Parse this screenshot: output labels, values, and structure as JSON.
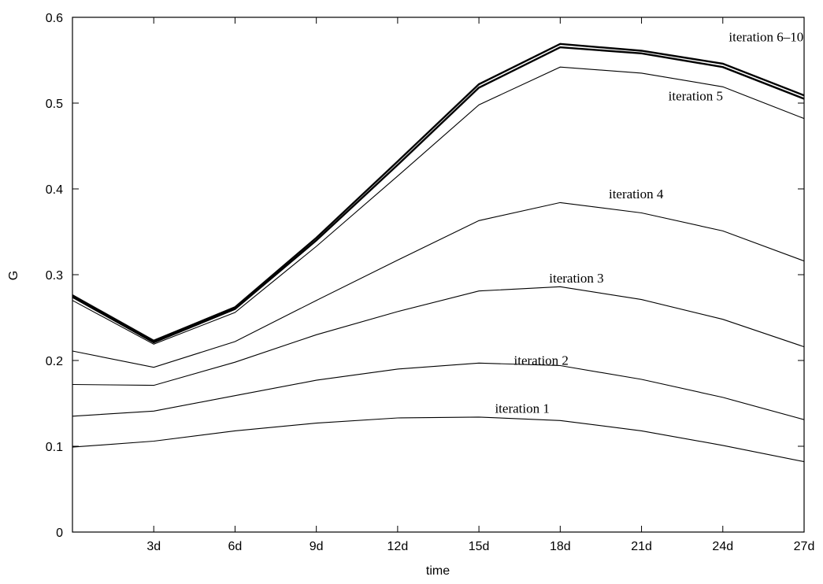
{
  "chart_data": {
    "type": "line",
    "xlabel": "time",
    "ylabel": "G",
    "xlim": [
      0,
      27
    ],
    "ylim": [
      0,
      0.6
    ],
    "x": [
      0,
      3,
      6,
      9,
      12,
      15,
      18,
      21,
      24,
      27
    ],
    "x_tick_values": [
      3,
      6,
      9,
      12,
      15,
      18,
      21,
      24,
      27
    ],
    "x_tick_labels": [
      "3d",
      "6d",
      "9d",
      "12d",
      "15d",
      "18d",
      "21d",
      "24d",
      "27d"
    ],
    "y_tick_values": [
      0,
      0.1,
      0.2,
      0.3,
      0.4,
      0.5,
      0.6
    ],
    "y_tick_labels": [
      "0",
      "0.1",
      "0.2",
      "0.3",
      "0.4",
      "0.5",
      "0.6"
    ],
    "grid": false,
    "line_color": "#000000",
    "series": [
      {
        "values": [
          0.099,
          0.106,
          0.118,
          0.127,
          0.133,
          0.134,
          0.13,
          0.118,
          0.101,
          0.082
        ]
      },
      {
        "values": [
          0.135,
          0.141,
          0.159,
          0.177,
          0.19,
          0.197,
          0.194,
          0.178,
          0.157,
          0.131
        ]
      },
      {
        "values": [
          0.172,
          0.171,
          0.198,
          0.23,
          0.257,
          0.281,
          0.286,
          0.271,
          0.248,
          0.216
        ]
      },
      {
        "values": [
          0.211,
          0.192,
          0.222,
          0.27,
          0.317,
          0.363,
          0.384,
          0.372,
          0.351,
          0.316
        ]
      },
      {
        "values": [
          0.27,
          0.219,
          0.256,
          0.333,
          0.415,
          0.498,
          0.542,
          0.535,
          0.519,
          0.482
        ]
      },
      {
        "values": [
          0.274,
          0.221,
          0.26,
          0.34,
          0.428,
          0.518,
          0.565,
          0.558,
          0.542,
          0.505
        ],
        "bold": true
      },
      {
        "values": [
          0.276,
          0.223,
          0.262,
          0.343,
          0.432,
          0.522,
          0.569,
          0.561,
          0.546,
          0.509
        ],
        "bold": true
      }
    ],
    "annotations": [
      {
        "text": "iteration 1",
        "x": 16.6,
        "y": 0.139
      },
      {
        "text": "iteration 2",
        "x": 17.3,
        "y": 0.195
      },
      {
        "text": "iteration 3",
        "x": 18.6,
        "y": 0.291
      },
      {
        "text": "iteration 4",
        "x": 20.8,
        "y": 0.389
      },
      {
        "text": "iteration 5",
        "x": 23.0,
        "y": 0.503
      },
      {
        "text": "iteration 6–10",
        "x": 25.6,
        "y": 0.572
      }
    ]
  }
}
